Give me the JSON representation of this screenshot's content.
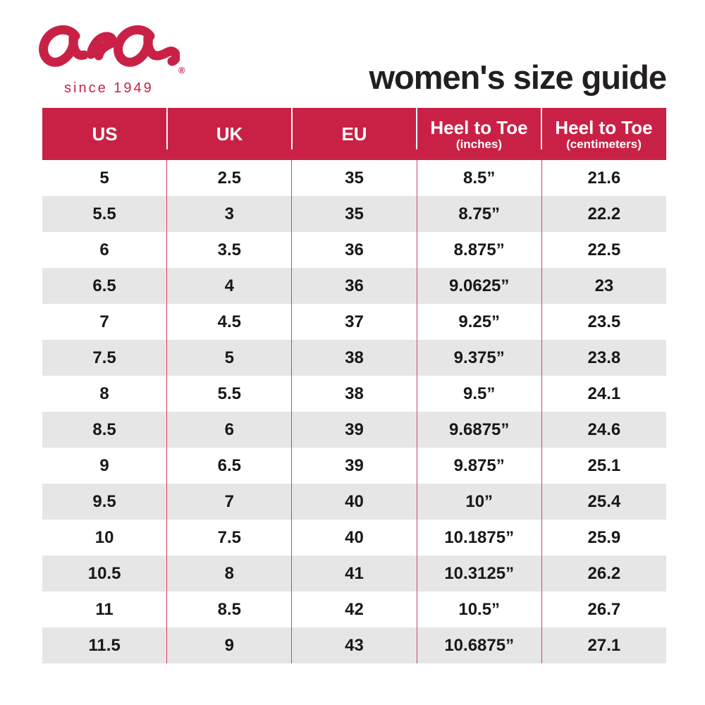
{
  "brand": {
    "logo_text": "ara",
    "registered_mark": "®",
    "tagline": "since 1949",
    "color": "#c92146"
  },
  "title": "women's size guide",
  "colors": {
    "header_bg": "#c92146",
    "header_text": "#ffffff",
    "row_bg": "#ffffff",
    "row_alt_bg": "#e6e6e6",
    "body_divider": "#d6415f",
    "title_color": "#231f20"
  },
  "table": {
    "columns": [
      {
        "label": "US",
        "sub": ""
      },
      {
        "label": "UK",
        "sub": ""
      },
      {
        "label": "EU",
        "sub": ""
      },
      {
        "label": "Heel to Toe",
        "sub": "(inches)"
      },
      {
        "label": "Heel to Toe",
        "sub": "(centimeters)"
      }
    ],
    "rows": [
      [
        "5",
        "2.5",
        "35",
        "8.5”",
        "21.6"
      ],
      [
        "5.5",
        "3",
        "35",
        "8.75”",
        "22.2"
      ],
      [
        "6",
        "3.5",
        "36",
        "8.875”",
        "22.5"
      ],
      [
        "6.5",
        "4",
        "36",
        "9.0625”",
        "23"
      ],
      [
        "7",
        "4.5",
        "37",
        "9.25”",
        "23.5"
      ],
      [
        "7.5",
        "5",
        "38",
        "9.375”",
        "23.8"
      ],
      [
        "8",
        "5.5",
        "38",
        "9.5”",
        "24.1"
      ],
      [
        "8.5",
        "6",
        "39",
        "9.6875”",
        "24.6"
      ],
      [
        "9",
        "6.5",
        "39",
        "9.875”",
        "25.1"
      ],
      [
        "9.5",
        "7",
        "40",
        "10”",
        "25.4"
      ],
      [
        "10",
        "7.5",
        "40",
        "10.1875”",
        "25.9"
      ],
      [
        "10.5",
        "8",
        "41",
        "10.3125”",
        "26.2"
      ],
      [
        "11",
        "8.5",
        "42",
        "10.5”",
        "26.7"
      ],
      [
        "11.5",
        "9",
        "43",
        "10.6875”",
        "27.1"
      ]
    ]
  }
}
